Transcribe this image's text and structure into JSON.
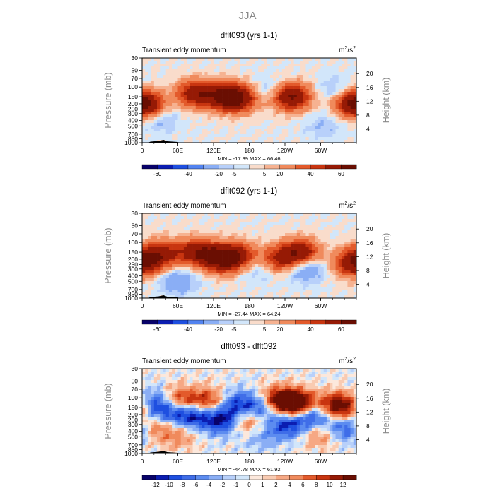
{
  "page": {
    "title": "JJA"
  },
  "chart_data": [
    {
      "type": "heatmap",
      "title": "dflt093 (yrs 1-1)",
      "subtitle": "Transient eddy momentum",
      "units": "m²/s²",
      "units_main": "m",
      "units_sup": "2",
      "units_slash": "/s",
      "units_sup2": "2",
      "ylabel": "Pressure (mb)",
      "y2label": "Height (km)",
      "xticks": [
        "0",
        "60E",
        "120E",
        "180",
        "120W",
        "60W"
      ],
      "yticks": [
        "30",
        "50",
        "70",
        "100",
        "150",
        "200",
        "250",
        "300",
        "400",
        "500",
        "700",
        "850",
        "1000"
      ],
      "y2ticks": [
        "20",
        "16",
        "12",
        "8",
        "4"
      ],
      "min": -17.39,
      "max": 66.46,
      "minmax_label": "MIN = -17.39  MAX =  66.46",
      "colorbar": [
        "-60",
        "-40",
        "-20",
        "-5",
        "5",
        "20",
        "40",
        "60"
      ],
      "scale": 66.46,
      "features": [
        {
          "lon": 5,
          "p": 200,
          "amp": 40
        },
        {
          "lon": 90,
          "p": 130,
          "amp": 55
        },
        {
          "lon": 140,
          "p": 150,
          "amp": 60
        },
        {
          "lon": 165,
          "p": 160,
          "amp": 45
        },
        {
          "lon": 250,
          "p": 150,
          "amp": 66
        },
        {
          "lon": 355,
          "p": 200,
          "amp": 40
        },
        {
          "lon": 30,
          "p": 400,
          "amp": -12
        },
        {
          "lon": 215,
          "p": 120,
          "amp": -15
        },
        {
          "lon": 305,
          "p": 500,
          "amp": -10
        },
        {
          "lon": 325,
          "p": 110,
          "amp": -12
        }
      ]
    },
    {
      "type": "heatmap",
      "title": "dflt092 (yrs 1-1)",
      "subtitle": "Transient eddy momentum",
      "units": "m²/s²",
      "units_main": "m",
      "units_sup": "2",
      "units_slash": "/s",
      "units_sup2": "2",
      "ylabel": "Pressure (mb)",
      "y2label": "Height (km)",
      "xticks": [
        "0",
        "60E",
        "120E",
        "180",
        "120W",
        "60W"
      ],
      "yticks": [
        "30",
        "50",
        "70",
        "100",
        "150",
        "200",
        "250",
        "300",
        "400",
        "500",
        "700",
        "850",
        "1000"
      ],
      "y2ticks": [
        "20",
        "16",
        "12",
        "8",
        "4"
      ],
      "min": -27.44,
      "max": 64.24,
      "minmax_label": "MIN = -27.44  MAX =  64.24",
      "colorbar": [
        "-60",
        "-40",
        "-20",
        "-5",
        "5",
        "20",
        "40",
        "60"
      ],
      "scale": 66.46,
      "features": [
        {
          "lon": 10,
          "p": 200,
          "amp": 45
        },
        {
          "lon": 40,
          "p": 150,
          "amp": 35
        },
        {
          "lon": 95,
          "p": 150,
          "amp": 55
        },
        {
          "lon": 135,
          "p": 200,
          "amp": 64
        },
        {
          "lon": 160,
          "p": 170,
          "amp": 40
        },
        {
          "lon": 230,
          "p": 200,
          "amp": 40
        },
        {
          "lon": 265,
          "p": 150,
          "amp": 55
        },
        {
          "lon": 350,
          "p": 250,
          "amp": 35
        },
        {
          "lon": 60,
          "p": 500,
          "amp": -20
        },
        {
          "lon": 275,
          "p": 300,
          "amp": -25
        },
        {
          "lon": 195,
          "p": 300,
          "amp": -12
        }
      ]
    },
    {
      "type": "heatmap",
      "title": "dflt093 - dflt092",
      "subtitle": "Transient eddy momentum",
      "units": "m²/s²",
      "units_main": "m",
      "units_sup": "2",
      "units_slash": "/s",
      "units_sup2": "2",
      "ylabel": "Pressure (mb)",
      "y2label": "Height (km)",
      "xticks": [
        "0",
        "60E",
        "120E",
        "180",
        "120W",
        "60W"
      ],
      "yticks": [
        "30",
        "50",
        "70",
        "100",
        "150",
        "200",
        "250",
        "300",
        "400",
        "500",
        "700",
        "850",
        "1000"
      ],
      "y2ticks": [
        "20",
        "16",
        "12",
        "8",
        "4"
      ],
      "min": -44.78,
      "max": 61.92,
      "minmax_label": "MIN = -44.78  MAX =  61.92",
      "colorbar": [
        "-12",
        "-10",
        "-8",
        "-6",
        "-4",
        "-2",
        "-1",
        "0",
        "1",
        "2",
        "4",
        "6",
        "8",
        "10",
        "12"
      ],
      "scale": 14,
      "features": [
        {
          "lon": 15,
          "p": 120,
          "amp": -35
        },
        {
          "lon": 40,
          "p": 200,
          "amp": -30
        },
        {
          "lon": 65,
          "p": 110,
          "amp": 30
        },
        {
          "lon": 25,
          "p": 300,
          "amp": 25
        },
        {
          "lon": 85,
          "p": 200,
          "amp": -40
        },
        {
          "lon": 110,
          "p": 120,
          "amp": 35
        },
        {
          "lon": 135,
          "p": 250,
          "amp": -44
        },
        {
          "lon": 160,
          "p": 130,
          "amp": -30
        },
        {
          "lon": 175,
          "p": 250,
          "amp": 30
        },
        {
          "lon": 200,
          "p": 150,
          "amp": -30
        },
        {
          "lon": 230,
          "p": 110,
          "amp": 45
        },
        {
          "lon": 260,
          "p": 130,
          "amp": 60
        },
        {
          "lon": 245,
          "p": 300,
          "amp": -35
        },
        {
          "lon": 290,
          "p": 200,
          "amp": -40
        },
        {
          "lon": 320,
          "p": 150,
          "amp": 40
        },
        {
          "lon": 350,
          "p": 130,
          "amp": 35
        },
        {
          "lon": 340,
          "p": 350,
          "amp": -30
        },
        {
          "lon": 60,
          "p": 500,
          "amp": 15
        },
        {
          "lon": 200,
          "p": 500,
          "amp": -12
        },
        {
          "lon": 300,
          "p": 450,
          "amp": 18
        }
      ]
    }
  ],
  "palette": {
    "panel_1_2": [
      "#08026a",
      "#0b1db1",
      "#1e4fe0",
      "#5283f0",
      "#8aaef5",
      "#b8d0fa",
      "#d2e6fa",
      "#f9dccb",
      "#f6b291",
      "#f08a5c",
      "#e35a2b",
      "#c83510",
      "#961a05",
      "#6a0e02"
    ],
    "panel_3": [
      "#08026a",
      "#0b1db1",
      "#1e4fe0",
      "#3f6de8",
      "#5c8cf0",
      "#8aaef5",
      "#b8d0fa",
      "#d2e6fa",
      "#fce8dc",
      "#f9cbb2",
      "#f6a884",
      "#f08a5c",
      "#e35a2b",
      "#c83510",
      "#961a05",
      "#6a0e02"
    ]
  }
}
